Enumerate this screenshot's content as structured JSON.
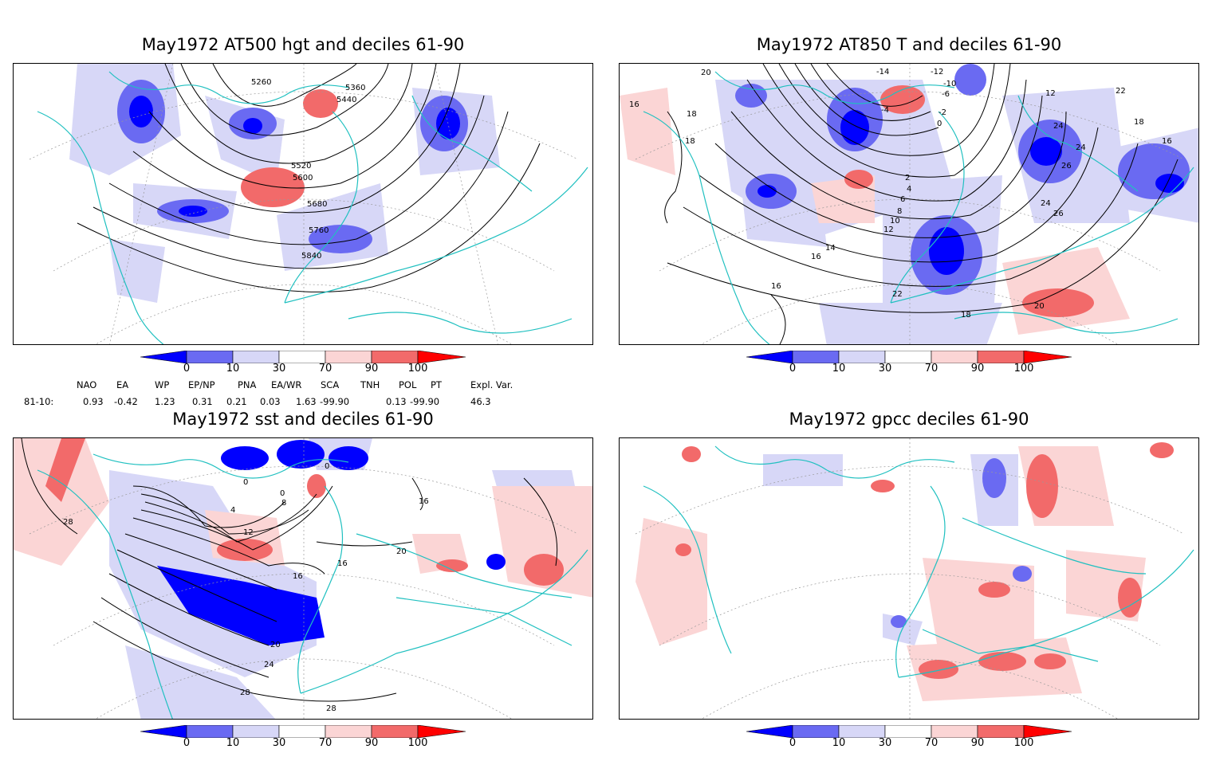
{
  "panels": [
    {
      "title": "May1972 AT500 hgt and deciles 61-90",
      "contour_labels": [
        "5260",
        "5360",
        "5440",
        "5520",
        "5600",
        "5680",
        "5760",
        "5840"
      ]
    },
    {
      "title": "May1972 AT850 T and deciles 61-90",
      "contour_labels": [
        "20",
        "16",
        "18",
        "18",
        "-14",
        "-12",
        "-10",
        "-6",
        "-4",
        "-2",
        "0",
        "2",
        "4",
        "6",
        "8",
        "10",
        "12",
        "14",
        "16",
        "16",
        "18",
        "20",
        "22",
        "24",
        "24",
        "24",
        "26",
        "26",
        "22",
        "18",
        "16",
        "12"
      ]
    },
    {
      "title": "May1972 sst and deciles 61-90",
      "contour_labels": [
        "0",
        "0",
        "4",
        "8",
        "12",
        "16",
        "16",
        "16",
        "20",
        "20",
        "24",
        "28",
        "28",
        "28",
        "0"
      ]
    },
    {
      "title": "May1972 gpcc deciles 61-90",
      "contour_labels": []
    }
  ],
  "colorbar": {
    "labels": [
      "0",
      "10",
      "30",
      "70",
      "90",
      "100"
    ],
    "colors": [
      "#0000ff",
      "#6a6af2",
      "#d7d7f7",
      "#ffffff",
      "#fbd5d5",
      "#f26a6a",
      "#ff0000"
    ]
  },
  "indices": {
    "row_label": "81-10:",
    "headers": [
      "NAO",
      "EA",
      "WP",
      "EP/NP",
      "PNA",
      "EA/WR",
      "SCA",
      "TNH",
      "POL",
      "PT",
      "Expl. Var."
    ],
    "values": [
      "0.93",
      "-0.42",
      "1.23",
      "0.31",
      "0.21",
      "0.03",
      "1.63",
      "-99.90",
      "0.13",
      "-99.90",
      "46.3"
    ]
  }
}
